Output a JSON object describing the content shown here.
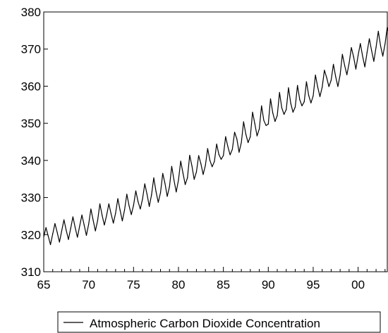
{
  "chart_data": {
    "type": "line",
    "title": "",
    "xlabel": "",
    "ylabel": "",
    "x_tick_labels": [
      "65",
      "70",
      "75",
      "80",
      "85",
      "90",
      "95",
      "00"
    ],
    "x_range": [
      1965.0,
      2003.25
    ],
    "x_tick_values": [
      1965,
      1970,
      1975,
      1980,
      1985,
      1990,
      1995,
      2000
    ],
    "ylim": [
      310,
      380
    ],
    "y_ticks": [
      310,
      320,
      330,
      340,
      350,
      360,
      370,
      380
    ],
    "y_tick_labels": [
      "310",
      "320",
      "330",
      "340",
      "350",
      "360",
      "370",
      "380"
    ],
    "grid": false,
    "legend": "bottom-center",
    "series": [
      {
        "name": "Atmospheric Carbon Dioxide Concentration",
        "x_start": 1965.0,
        "x_step": 0.25,
        "values": [
          319.4,
          321.9,
          319.6,
          317.3,
          320.2,
          323.0,
          320.6,
          318.0,
          321.0,
          324.0,
          321.2,
          318.7,
          321.7,
          324.8,
          321.9,
          319.3,
          322.3,
          325.3,
          322.6,
          319.8,
          322.8,
          326.9,
          323.9,
          321.0,
          323.8,
          328.3,
          325.2,
          322.6,
          325.2,
          328.3,
          325.6,
          323.1,
          325.8,
          329.7,
          326.6,
          323.7,
          326.7,
          330.9,
          327.8,
          325.4,
          327.9,
          331.8,
          328.9,
          326.9,
          329.6,
          333.7,
          330.9,
          327.6,
          330.7,
          335.3,
          331.6,
          328.7,
          331.3,
          336.5,
          333.8,
          330.3,
          332.9,
          338.4,
          334.7,
          331.5,
          334.7,
          339.8,
          336.6,
          333.5,
          335.3,
          341.4,
          338.5,
          334.9,
          336.9,
          341.3,
          339.1,
          336.2,
          338.7,
          343.2,
          340.0,
          338.3,
          339.7,
          344.4,
          341.6,
          340.3,
          341.3,
          346.4,
          343.7,
          341.5,
          343.0,
          347.6,
          345.8,
          342.2,
          344.8,
          350.4,
          347.1,
          344.8,
          346.4,
          353.0,
          349.9,
          346.6,
          348.5,
          354.7,
          350.8,
          349.4,
          349.8,
          356.6,
          352.8,
          350.5,
          352.1,
          358.3,
          354.2,
          352.4,
          353.7,
          359.6,
          355.4,
          353.0,
          354.4,
          360.2,
          356.4,
          354.7,
          355.8,
          361.2,
          357.5,
          355.5,
          357.4,
          363.0,
          359.8,
          357.2,
          359.7,
          364.3,
          362.3,
          359.9,
          361.6,
          365.9,
          362.6,
          359.9,
          363.1,
          368.6,
          365.6,
          363.1,
          366.2,
          370.4,
          367.9,
          364.6,
          368.3,
          371.5,
          368.1,
          365.2,
          369.1,
          372.8,
          369.6,
          366.7,
          370.5,
          374.8,
          370.9,
          368.1,
          371.4,
          375.9,
          373.6,
          370.3
        ]
      }
    ]
  }
}
